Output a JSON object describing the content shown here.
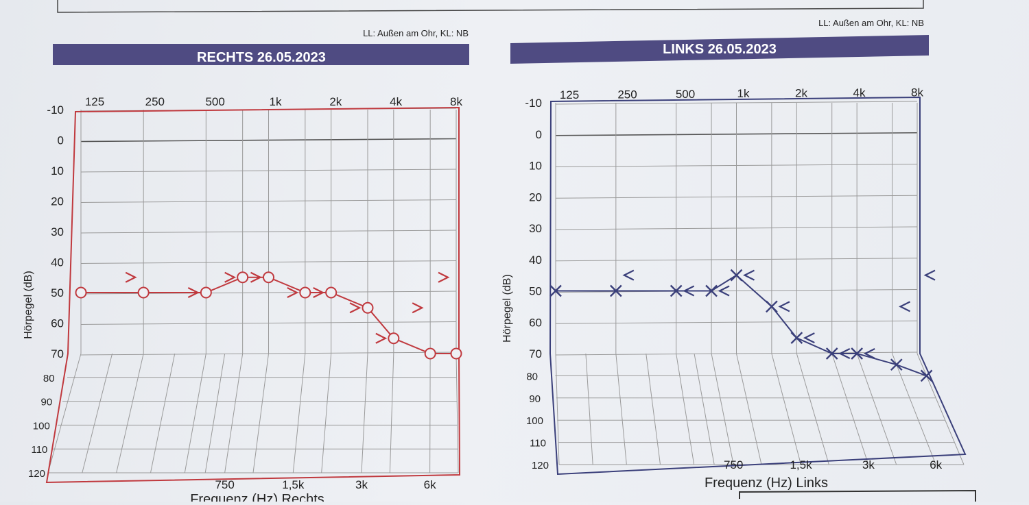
{
  "chart_data": [
    {
      "type": "line",
      "title": "RECHTS  26.05.2023",
      "note": "LL: Außen am Ohr, KL: NB",
      "ylabel": "Hörpegel (dB)",
      "xlabel": "Frequenz (Hz) Rechts",
      "top_ticks": [
        "125",
        "250",
        "500",
        "1k",
        "2k",
        "4k",
        "8k"
      ],
      "bottom_ticks": [
        "750",
        "1,5k",
        "3k",
        "6k"
      ],
      "y_ticks": [
        "-10",
        "0",
        "10",
        "20",
        "30",
        "40",
        "50",
        "60",
        "70",
        "80",
        "90",
        "100",
        "110",
        "120"
      ],
      "ylim": [
        -10,
        120
      ],
      "grid": true,
      "color": "#c0393e",
      "series": [
        {
          "marker": "circle",
          "x": [
            "125",
            "250",
            "500",
            "750",
            "1k",
            "1,5k",
            "2k",
            "3k",
            "4k",
            "6k",
            "8k"
          ],
          "values": [
            50,
            50,
            50,
            45,
            45,
            50,
            50,
            55,
            65,
            70,
            70
          ]
        },
        {
          "marker": "bone-conduction-right",
          "x": [
            "250",
            "500",
            "750",
            "1k",
            "1,5k",
            "2k",
            "3k",
            "4k",
            "6k",
            "8k"
          ],
          "values": [
            45,
            50,
            45,
            45,
            50,
            50,
            55,
            65,
            55,
            45
          ]
        }
      ]
    },
    {
      "type": "line",
      "title": "LINKS 26.05.2023",
      "note": "LL: Außen am Ohr, KL: NB",
      "ylabel": "Hörpegel (dB)",
      "xlabel": "Frequenz (Hz) Links",
      "top_ticks": [
        "125",
        "250",
        "500",
        "1k",
        "2k",
        "4k",
        "8k"
      ],
      "bottom_ticks": [
        "750",
        "1,5k",
        "3k",
        "6k"
      ],
      "y_ticks": [
        "-10",
        "0",
        "10",
        "20",
        "30",
        "40",
        "50",
        "60",
        "70",
        "80",
        "90",
        "100",
        "110",
        "120"
      ],
      "ylim": [
        -10,
        120
      ],
      "grid": true,
      "color": "#3a3f7a",
      "series": [
        {
          "marker": "cross",
          "x": [
            "125",
            "250",
            "500",
            "750",
            "1k",
            "1,5k",
            "2k",
            "3k",
            "4k",
            "6k",
            "8k"
          ],
          "values": [
            50,
            50,
            50,
            50,
            45,
            55,
            65,
            70,
            70,
            75,
            80
          ]
        },
        {
          "marker": "bone-conduction-left",
          "x": [
            "250",
            "500",
            "750",
            "1k",
            "1,5k",
            "2k",
            "3k",
            "4k",
            "6k",
            "8k"
          ],
          "values": [
            45,
            50,
            50,
            45,
            55,
            65,
            70,
            70,
            55,
            45
          ]
        }
      ]
    }
  ]
}
